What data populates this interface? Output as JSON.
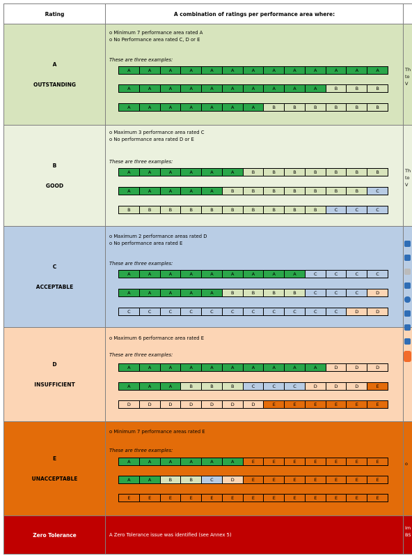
{
  "header": {
    "rating": "Rating",
    "combination": "A combination of ratings per performance area where:"
  },
  "ratings": [
    {
      "letter": "A",
      "name": "OUTSTANDING",
      "criteria": [
        "o  Minimum 7 performance area rated A",
        "o  No Performance area rated C, D or E"
      ],
      "examples_label": "These are three examples:",
      "examples": [
        [
          "A",
          "A",
          "A",
          "A",
          "A",
          "A",
          "A",
          "A",
          "A",
          "A",
          "A",
          "A",
          "A"
        ],
        [
          "A",
          "A",
          "A",
          "A",
          "A",
          "A",
          "A",
          "A",
          "A",
          "A",
          "B",
          "B",
          "B"
        ],
        [
          "A",
          "A",
          "A",
          "A",
          "A",
          "A",
          "A",
          "B",
          "B",
          "B",
          "B",
          "B",
          "B"
        ]
      ],
      "side_text": [
        "Th",
        "to",
        "V"
      ]
    },
    {
      "letter": "B",
      "name": "GOOD",
      "criteria": [
        "o  Maximum 3 performance area rated C",
        "o  No performance area rated D or E"
      ],
      "examples_label": "These are three examples:",
      "examples": [
        [
          "A",
          "A",
          "A",
          "A",
          "A",
          "A",
          "B",
          "B",
          "B",
          "B",
          "B",
          "B",
          "B"
        ],
        [
          "A",
          "A",
          "A",
          "A",
          "A",
          "B",
          "B",
          "B",
          "B",
          "B",
          "B",
          "B",
          "C"
        ],
        [
          "B",
          "B",
          "B",
          "B",
          "B",
          "B",
          "B",
          "B",
          "B",
          "B",
          "C",
          "C",
          "C"
        ]
      ],
      "side_text": [
        "Th",
        "to",
        "V"
      ]
    },
    {
      "letter": "C",
      "name": "ACCEPTABLE",
      "criteria": [
        "o  Maximum  2 performance areas rated D",
        "o  No performance area rated E"
      ],
      "examples_label": "These are three examples:",
      "examples": [
        [
          "A",
          "A",
          "A",
          "A",
          "A",
          "A",
          "A",
          "A",
          "A",
          "C",
          "C",
          "C",
          "C"
        ],
        [
          "A",
          "A",
          "A",
          "A",
          "A",
          "B",
          "B",
          "B",
          "B",
          "C",
          "C",
          "C",
          "D"
        ],
        [
          "C",
          "C",
          "C",
          "C",
          "C",
          "C",
          "C",
          "C",
          "C",
          "C",
          "C",
          "D",
          "D"
        ]
      ],
      "side_text": []
    },
    {
      "letter": "D",
      "name": "INSUFFICIENT",
      "criteria": [
        "o  Maximum 6 performance area rated E"
      ],
      "examples_label": "These are three examples:",
      "examples": [
        [
          "A",
          "A",
          "A",
          "A",
          "A",
          "A",
          "A",
          "A",
          "A",
          "A",
          "D",
          "D",
          "D"
        ],
        [
          "A",
          "A",
          "A",
          "B",
          "B",
          "B",
          "C",
          "C",
          "C",
          "D",
          "D",
          "D",
          "E"
        ],
        [
          "D",
          "D",
          "D",
          "D",
          "D",
          "D",
          "D",
          "E",
          "E",
          "E",
          "E",
          "E",
          "E"
        ]
      ],
      "side_text": []
    },
    {
      "letter": "E",
      "name": "UNACCEPTABLE",
      "criteria": [
        "o  Minimum 7 performance areas  rated E"
      ],
      "examples_label": "These are three examples:",
      "examples": [
        [
          "A",
          "A",
          "A",
          "A",
          "A",
          "A",
          "E",
          "E",
          "E",
          "E",
          "E",
          "E",
          "E"
        ],
        [
          "A",
          "A",
          "B",
          "B",
          "C",
          "D",
          "E",
          "E",
          "E",
          "E",
          "E",
          "E",
          "E"
        ],
        [
          "E",
          "E",
          "E",
          "E",
          "E",
          "E",
          "E",
          "E",
          "E",
          "E",
          "E",
          "E",
          "E"
        ]
      ],
      "side_text": [
        "o"
      ]
    }
  ],
  "zero_tolerance": {
    "name": "Zero Tolerance",
    "text": "A Zero Tolerance issue was identified (see Annex 5)",
    "side_text": [
      "Im",
      "BS"
    ]
  }
}
